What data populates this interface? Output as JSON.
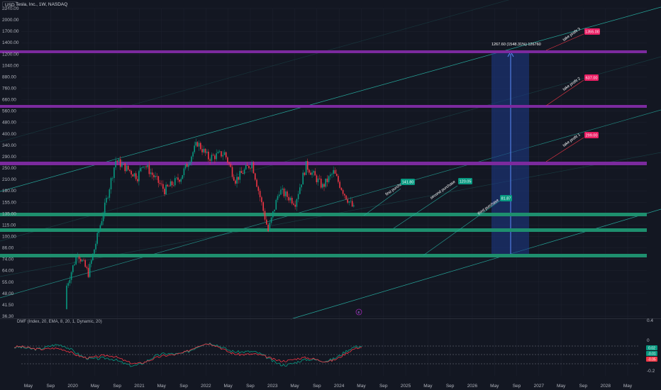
{
  "header": {
    "currency": "USD",
    "symbol": "Tesla, Inc., 1W, NASDAQ"
  },
  "indicator": {
    "title": "DMF (Index, 20, EMA, 8, 20, 1, Dynamic, 20)",
    "scale": [
      "0.4",
      "0",
      "-0.2"
    ],
    "badges": [
      {
        "label": "0.02",
        "color": "#089981"
      },
      {
        "label": "-0.01",
        "color": "#089981"
      },
      {
        "label": "-0.05",
        "color": "#f23645"
      }
    ]
  },
  "price_axis": [
    "2340.00",
    "2000.00",
    "1700.00",
    "1400.00",
    "1200.00",
    "1040.00",
    "880.00",
    "760.00",
    "660.00",
    "560.00",
    "480.00",
    "400.00",
    "340.00",
    "290.00",
    "250.00",
    "210.00",
    "180.00",
    "155.00",
    "135.00",
    "115.00",
    "100.00",
    "86.00",
    "74.00",
    "64.00",
    "55.00",
    "48.00",
    "41.50",
    "36.30"
  ],
  "time_axis": [
    "May",
    "Sep",
    "2020",
    "May",
    "Sep",
    "2021",
    "May",
    "Sep",
    "2022",
    "May",
    "Sep",
    "2023",
    "May",
    "Sep",
    "2024",
    "May",
    "Sep",
    "2025",
    "May",
    "Sep",
    "2026",
    "May",
    "Sep",
    "2027",
    "May",
    "Sep",
    "2028",
    "May"
  ],
  "annotations": {
    "measure_label": "1267.60 (1548.31%) 126760",
    "first_purchase": {
      "text": "first purchase",
      "price": "141.80"
    },
    "second_purchase": {
      "text": "second purchase",
      "price": "120.05"
    },
    "third_purchase": {
      "text": "third purchase",
      "price": "81.87"
    },
    "take_profit_1": {
      "text": "take profit 1",
      "price": "299.00"
    },
    "take_profit_2": {
      "text": "take profit 2",
      "price": "637.00"
    },
    "take_profit_3": {
      "text": "take profit 3",
      "price": "1355.00"
    },
    "event_marker": "E"
  },
  "colors": {
    "background": "#131722",
    "bullish": "#089981",
    "bearish": "#f23645",
    "support_zone": "#1e8f6e",
    "resistance_zone": "#7b2a9e",
    "measure_box": "#1e3a8a",
    "take_profit_badge": "#e91e63",
    "purchase_badge": "#089981"
  },
  "chart_data": {
    "type": "candlestick",
    "scale": "log",
    "x_range": [
      "2019-04",
      "2028-06"
    ],
    "y_range": [
      36.3,
      2340
    ],
    "support_zones": [
      141.8,
      120.05,
      81.87
    ],
    "resistance_zones": [
      299,
      637,
      1355
    ],
    "series": [
      {
        "date": "2019-11",
        "close": 55
      },
      {
        "date": "2020-01",
        "close": 86
      },
      {
        "date": "2020-03",
        "close": 65
      },
      {
        "date": "2020-06",
        "close": 160
      },
      {
        "date": "2020-08",
        "close": 300
      },
      {
        "date": "2020-12",
        "close": 240
      },
      {
        "date": "2021-01",
        "close": 290
      },
      {
        "date": "2021-05",
        "close": 200
      },
      {
        "date": "2021-08",
        "close": 240
      },
      {
        "date": "2021-11",
        "close": 380
      },
      {
        "date": "2022-01",
        "close": 310
      },
      {
        "date": "2022-04",
        "close": 330
      },
      {
        "date": "2022-06",
        "close": 230
      },
      {
        "date": "2022-09",
        "close": 290
      },
      {
        "date": "2022-12",
        "close": 115
      },
      {
        "date": "2023-02",
        "close": 200
      },
      {
        "date": "2023-05",
        "close": 170
      },
      {
        "date": "2023-07",
        "close": 280
      },
      {
        "date": "2023-10",
        "close": 210
      },
      {
        "date": "2023-12",
        "close": 255
      },
      {
        "date": "2024-02",
        "close": 190
      },
      {
        "date": "2024-04",
        "close": 150
      }
    ]
  }
}
